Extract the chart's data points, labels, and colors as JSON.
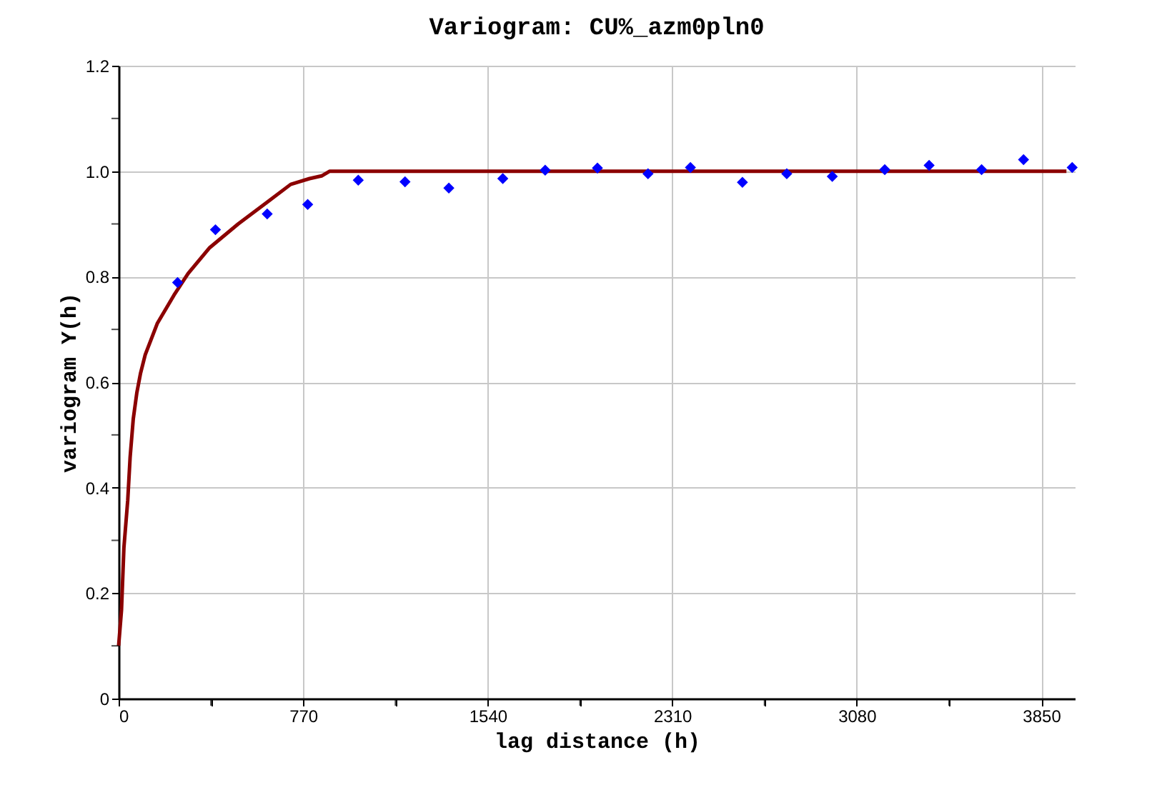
{
  "chart_data": {
    "type": "scatter",
    "title": "Variogram: CU%_azm0pln0",
    "xlabel": "lag distance (h)",
    "ylabel": "variogram Y(h)",
    "x": [
      246,
      404,
      620,
      789,
      1000,
      1195,
      1378,
      1603,
      1780,
      1998,
      2209,
      2386,
      2603,
      2788,
      2978,
      3197,
      3382,
      3601,
      3776,
      3979
    ],
    "series": [
      {
        "type": "scatter",
        "color": "#0000ff",
        "marker": "diamond",
        "values": [
          0.789,
          0.889,
          0.919,
          0.937,
          0.983,
          0.98,
          0.968,
          0.986,
          1.002,
          1.006,
          0.995,
          1.007,
          0.979,
          0.995,
          0.99,
          1.003,
          1.011,
          1.003,
          1.022,
          1.007
        ]
      },
      {
        "type": "line",
        "color": "#8b0000",
        "marker": "none",
        "line_style": "solid",
        "x": [
          0,
          12,
          22,
          38,
          48,
          61,
          76,
          91,
          111,
          161,
          231,
          290,
          380,
          499,
          619,
          718,
          797,
          847,
          881,
          3955
        ],
        "values": [
          0.1,
          0.168,
          0.286,
          0.376,
          0.458,
          0.53,
          0.58,
          0.616,
          0.652,
          0.711,
          0.765,
          0.806,
          0.855,
          0.9,
          0.941,
          0.975,
          0.986,
          0.991,
          1.0,
          1.0
        ]
      }
    ],
    "xlim": [
      0,
      3990
    ],
    "xticks": [
      0,
      {
        "value": 385,
        "label": null
      },
      770,
      {
        "value": 1155,
        "label": null
      },
      1540,
      {
        "value": 1925,
        "label": null
      },
      2310,
      {
        "value": 2695,
        "label": null
      },
      3080,
      {
        "value": 3465,
        "label": null
      },
      3850
    ],
    "ylim": [
      0,
      1.2
    ],
    "yticks": [
      0,
      {
        "value": 0.1,
        "label": null
      },
      0.2,
      {
        "value": 0.3,
        "label": null
      },
      0.4,
      {
        "value": 0.5,
        "label": null
      },
      0.6,
      {
        "value": 0.7,
        "label": null
      },
      0.8,
      {
        "value": 0.9,
        "label": null
      },
      {
        "value": 1,
        "label": "1.0"
      },
      {
        "value": 1.1,
        "label": null
      },
      {
        "value": 1.2,
        "label": "1.2"
      }
    ],
    "grid": true
  }
}
